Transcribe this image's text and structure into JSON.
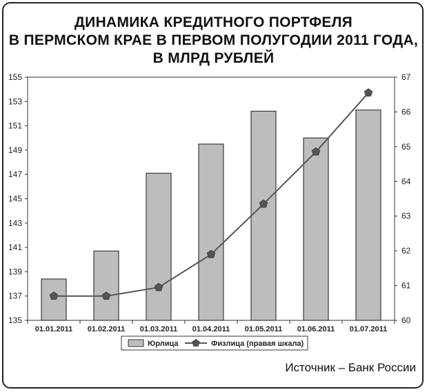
{
  "chart_data": {
    "type": "bar+line",
    "title_lines": [
      "ДИНАМИКА КРЕДИТНОГО ПОРТФЕЛЯ",
      "В ПЕРМСКОМ КРАЕ В ПЕРВОМ ПОЛУГОДИИ 2011 ГОДА,",
      "В МЛРД РУБЛЕЙ"
    ],
    "categories": [
      "01.01.2011",
      "01.02.2011",
      "01.03.2011",
      "01.04.2011",
      "01.05.2011",
      "01.06.2011",
      "01.07.2011"
    ],
    "series": [
      {
        "name": "Юрлица",
        "type": "bar",
        "axis": "left",
        "values": [
          138.4,
          140.7,
          147.1,
          149.5,
          152.2,
          150.0,
          152.3
        ]
      },
      {
        "name": "Физлица (правая шкала)",
        "type": "line",
        "axis": "right",
        "values": [
          60.7,
          60.7,
          60.95,
          61.9,
          63.35,
          64.85,
          66.55
        ]
      }
    ],
    "y_left": {
      "min": 135,
      "max": 155,
      "ticks": [
        135,
        137,
        139,
        141,
        143,
        145,
        147,
        149,
        151,
        153,
        155
      ]
    },
    "y_right": {
      "min": 60,
      "max": 67,
      "ticks": [
        60,
        61,
        62,
        63,
        64,
        65,
        66,
        67
      ]
    },
    "grid": false,
    "legend_position": "bottom",
    "colors": {
      "bar_fill": "#bdbdbd",
      "bar_stroke": "#3a3a3a",
      "line": "#555555",
      "marker": "#555555",
      "axis": "#333333"
    }
  },
  "source": "Источник – Банк России"
}
